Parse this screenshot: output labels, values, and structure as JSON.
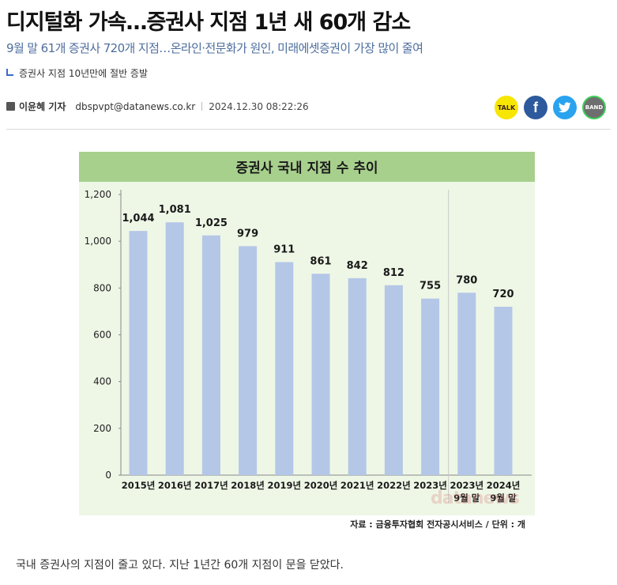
{
  "article": {
    "headline": "디지털화 가속…증권사 지점 1년 새 60개 감소",
    "subheadline": "9월 말 61개 증권사 720개 지점…온라인·전문화가 원인, 미래에셋증권이 가장 많이 줄여",
    "summary": "증권사 지점 10년만에 절반 증발",
    "author": "이윤혜 기자",
    "email": "dbspvpt@datanews.co.kr",
    "date": "2024.12.30 08:22:26",
    "lead": "국내 증권사의 지점이 줄고 있다. 지난 1년간 60개 지점이 문을 닫았다."
  },
  "share": {
    "items": [
      {
        "name": "kakaotalk-share-icon",
        "label": "TALK",
        "color": "#f7e600"
      },
      {
        "name": "facebook-share-icon",
        "label": "f",
        "color": "#2d5a9c"
      },
      {
        "name": "twitter-share-icon",
        "label": "",
        "color": "#2aa3ef"
      },
      {
        "name": "band-share-icon",
        "label": "BAND",
        "color": "#6e6e6e"
      }
    ]
  },
  "chart_data": {
    "type": "bar",
    "title": "증권사 국내 지점 수 추이",
    "categories": [
      "2015년",
      "2016년",
      "2017년",
      "2018년",
      "2019년",
      "2020년",
      "2021년",
      "2022년",
      "2023년",
      "2023년|9월 말",
      "2024년|9월 말"
    ],
    "values": [
      1044,
      1081,
      1025,
      979,
      911,
      861,
      842,
      812,
      755,
      780,
      720
    ],
    "value_labels": [
      "1,044",
      "1,081",
      "1,025",
      "979",
      "911",
      "861",
      "842",
      "812",
      "755",
      "780",
      "720"
    ],
    "yticks": [
      "0",
      "200",
      "400",
      "600",
      "800",
      "1,000",
      "1,200"
    ],
    "ylim": [
      0,
      1200
    ],
    "grid": false,
    "bar_color": "#b5c7e7",
    "title_band_color": "#a8d08d",
    "source": "자료 : 금융투자협회 전자공시서비스 / 단위 : 개",
    "watermark": "datanews"
  }
}
